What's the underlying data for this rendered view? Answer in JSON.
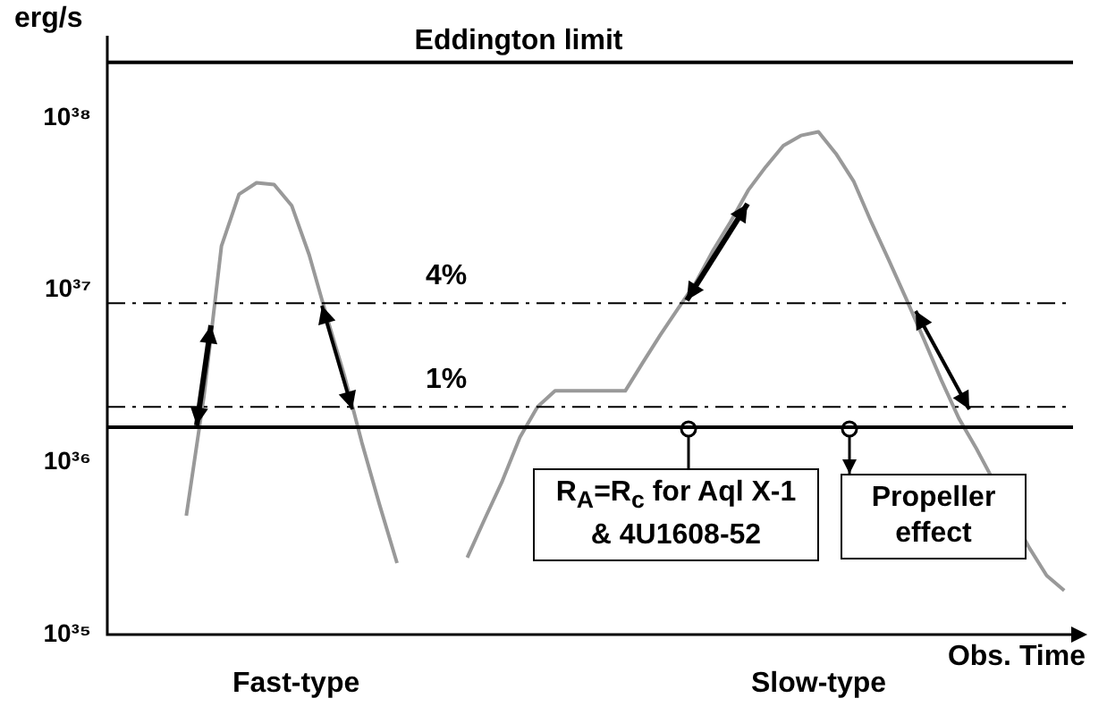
{
  "chart_data": {
    "type": "line",
    "ylabel": "erg/s",
    "xlabel": "Obs. Time",
    "categories": [
      null,
      null,
      null,
      null,
      null,
      null,
      null,
      null,
      null,
      null,
      null,
      null,
      null,
      null,
      null,
      null,
      null,
      null,
      null,
      null,
      null,
      null,
      null,
      null,
      null,
      null,
      null,
      null,
      null,
      null,
      null,
      null,
      null,
      null,
      null,
      null,
      null,
      null,
      null,
      null,
      null,
      null,
      null,
      null,
      null,
      null,
      null,
      null,
      null,
      null,
      null,
      null,
      null,
      null,
      null
    ],
    "series": [
      {
        "color": "#999999",
        "values": [
          null,
          null,
          null,
          null,
          4.9e+35,
          2.4e+36,
          1.8e+37,
          3.6e+37,
          4.2e+37,
          4.1e+37,
          3.1e+37,
          1.6e+37,
          7e+36,
          3.2e+36,
          1.3e+36,
          5.7e+35,
          2.6e+35,
          null,
          null,
          null,
          null,
          null,
          null,
          null,
          null,
          null,
          null,
          null,
          null,
          null,
          null,
          null,
          null,
          null,
          null,
          null,
          null,
          null,
          null,
          null,
          null,
          null,
          null,
          null,
          null,
          null,
          null,
          null,
          null,
          null,
          null,
          null,
          null,
          null,
          null
        ]
      },
      {
        "color": "#999999",
        "values": [
          null,
          null,
          null,
          null,
          null,
          null,
          null,
          null,
          null,
          null,
          null,
          null,
          null,
          null,
          null,
          null,
          null,
          null,
          null,
          null,
          2.8e+35,
          4.7e+35,
          7.8e+35,
          1.4e+36,
          2.1e+36,
          2.6e+36,
          2.6e+36,
          2.6e+36,
          2.6e+36,
          2.6e+36,
          3.8e+36,
          5.5e+36,
          7.8e+36,
          1.1e+37,
          1.7e+37,
          2.5e+37,
          3.8e+37,
          5.2e+37,
          6.9e+37,
          7.9e+37,
          8.3e+37,
          6.2e+37,
          4.3e+37,
          2.5e+37,
          1.5e+37,
          8.9e+36,
          5.2e+36,
          3e+36,
          1.8e+36,
          1.2e+36,
          null,
          null,
          3.2e+35,
          2.2e+35,
          1.8e+35
        ]
      }
    ],
    "log": "y",
    "ylim": [
      1e+35,
      3e+38
    ],
    "yticks": [
      {
        "value": 1e+35,
        "label": "10³⁵"
      },
      {
        "value": 1e+36,
        "label": "10³⁶"
      },
      {
        "value": 1e+37,
        "label": "10³⁷"
      },
      {
        "value": 1e+38,
        "label": "10³⁸"
      }
    ],
    "tick_labels": "y",
    "grid": false,
    "legend": false,
    "marker": "none",
    "line_style": "solid",
    "ref_lines": [
      {
        "axis": "y",
        "value": 2.1e+38,
        "label": "Eddington limit",
        "color": "#000000",
        "line_style": "solid"
      },
      {
        "axis": "y",
        "value": 8.4e+36,
        "label": null,
        "color": "#000000",
        "line_style": "dashed"
      },
      {
        "axis": "y",
        "value": 2.1e+36,
        "label": null,
        "color": "#000000",
        "line_style": "dashed"
      },
      {
        "axis": "y",
        "value": 1.6e+36,
        "label": null,
        "color": "#000000",
        "line_style": "solid"
      }
    ],
    "annotations": [
      "Fast-type",
      "Slow-type",
      "R$_{A}$=R$_{c}$ for Aql X-1 & 4U1608-52",
      "Propeller effect",
      {
        "text": "4%",
        "y": 8.4e+36
      },
      {
        "text": "1%",
        "y": 2.1e+36
      }
    ]
  }
}
